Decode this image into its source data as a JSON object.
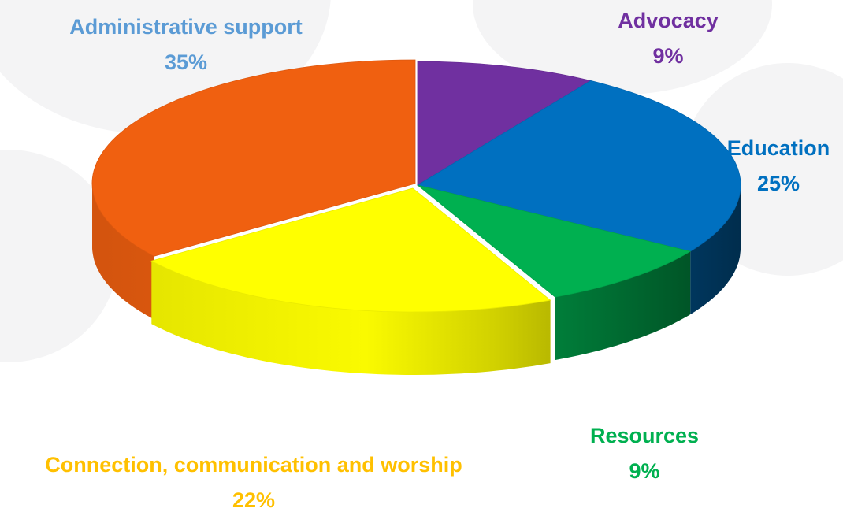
{
  "colors": {
    "background": "#ffffff",
    "decorative_circles": "#f4f4f5"
  },
  "chart_data": {
    "type": "pie",
    "style": "3d-exploded",
    "title": "",
    "categories": [
      "Advocacy",
      "Education",
      "Resources",
      "Connection, communication and worship",
      "Administrative support"
    ],
    "values": [
      9,
      25,
      9,
      22,
      35
    ],
    "value_labels": [
      "9%",
      "25%",
      "9%",
      "22%",
      "35%"
    ],
    "colors": [
      "#7030a0",
      "#0070c0",
      "#00b050",
      "#ffff00",
      "#f06010"
    ],
    "label_colors": [
      "#7030a0",
      "#0070c0",
      "#00b050",
      "#ffc000",
      "#5b9bd5"
    ],
    "legend": "none",
    "data_labels": "outside"
  }
}
